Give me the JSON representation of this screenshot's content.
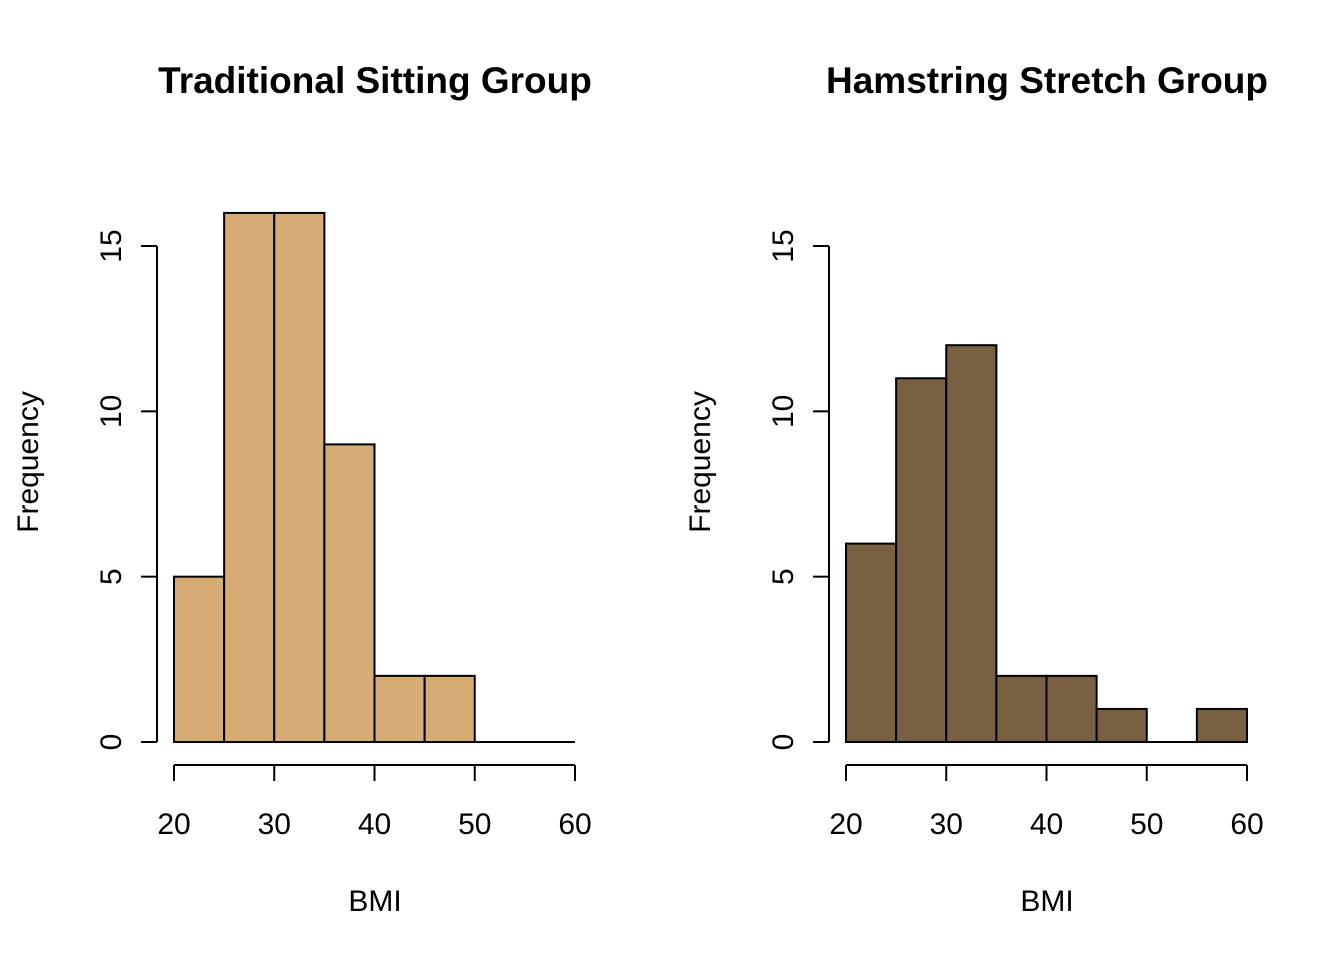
{
  "chart_data": [
    {
      "type": "bar",
      "subtype": "histogram",
      "title": "Traditional Sitting Group",
      "xlabel": "BMI",
      "ylabel": "Frequency",
      "bin_edges": [
        20,
        25,
        30,
        35,
        40,
        45,
        50,
        55,
        60
      ],
      "values": [
        5,
        16,
        16,
        9,
        2,
        2,
        0,
        0
      ],
      "xlim": [
        20,
        60
      ],
      "ylim": [
        0,
        15
      ],
      "x_ticks": [
        "20",
        "30",
        "40",
        "50",
        "60"
      ],
      "y_ticks": [
        "0",
        "5",
        "10",
        "15"
      ],
      "bar_color": "#D7AB74",
      "grid": false,
      "legend": "none"
    },
    {
      "type": "bar",
      "subtype": "histogram",
      "title": "Hamstring Stretch Group",
      "xlabel": "BMI",
      "ylabel": "Frequency",
      "bin_edges": [
        20,
        25,
        30,
        35,
        40,
        45,
        50,
        55,
        60
      ],
      "values": [
        6,
        11,
        12,
        2,
        2,
        1,
        0,
        1
      ],
      "xlim": [
        20,
        60
      ],
      "ylim": [
        0,
        15
      ],
      "x_ticks": [
        "20",
        "30",
        "40",
        "50",
        "60"
      ],
      "y_ticks": [
        "0",
        "5",
        "10",
        "15"
      ],
      "bar_color": "#7A6043",
      "grid": false,
      "legend": "none"
    }
  ]
}
